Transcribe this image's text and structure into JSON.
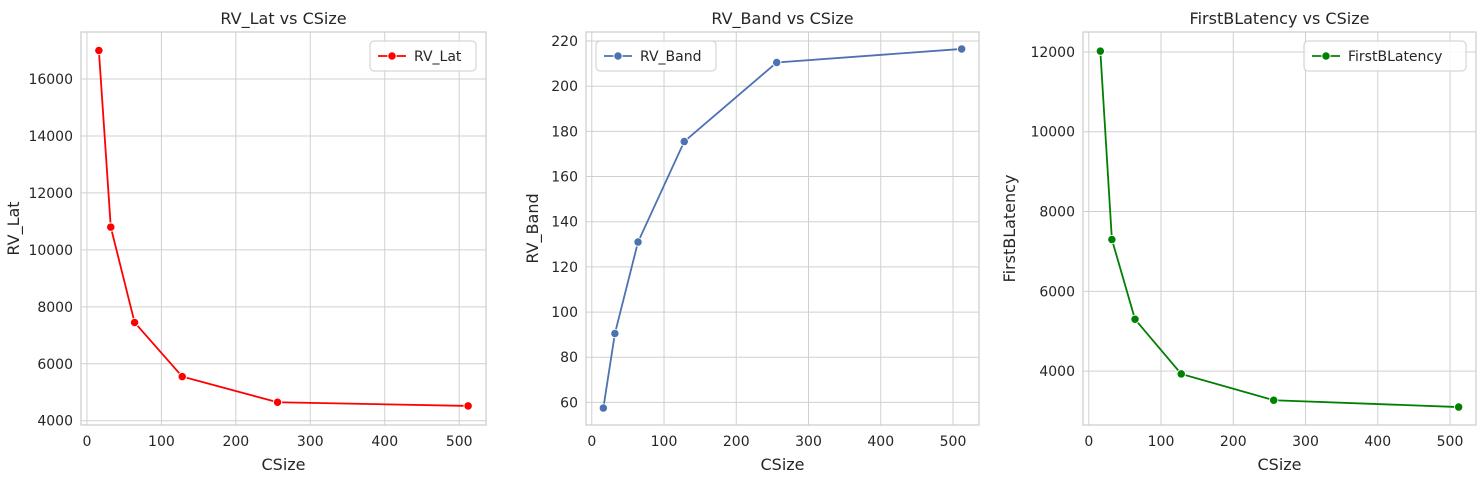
{
  "chart_data": [
    {
      "type": "line",
      "title": "RV_Lat vs CSize",
      "xlabel": "CSize",
      "ylabel": "RV_Lat",
      "xlim": [
        -8,
        536
      ],
      "ylim": [
        3850,
        17650
      ],
      "xticks": [
        0,
        100,
        200,
        300,
        400,
        500
      ],
      "yticks": [
        4000,
        6000,
        8000,
        10000,
        12000,
        14000,
        16000
      ],
      "grid": true,
      "legend_position": "top-right",
      "series": [
        {
          "name": "RV_Lat",
          "color": "#ff0000",
          "x": [
            16,
            32,
            64,
            128,
            256,
            512
          ],
          "y": [
            17000,
            10800,
            7450,
            5550,
            4650,
            4520
          ]
        }
      ]
    },
    {
      "type": "line",
      "title": "RV_Band vs CSize",
      "xlabel": "CSize",
      "ylabel": "RV_Band",
      "xlim": [
        -8,
        536
      ],
      "ylim": [
        50,
        224
      ],
      "xticks": [
        0,
        100,
        200,
        300,
        400,
        500
      ],
      "yticks": [
        60,
        80,
        100,
        120,
        140,
        160,
        180,
        200,
        220
      ],
      "grid": true,
      "legend_position": "top-left",
      "series": [
        {
          "name": "RV_Band",
          "color": "#4c72b0",
          "x": [
            16,
            32,
            64,
            128,
            256,
            512
          ],
          "y": [
            57.5,
            90.5,
            131,
            175.5,
            210.5,
            216.5
          ]
        }
      ]
    },
    {
      "type": "line",
      "title": "FirstBLatency vs CSize",
      "xlabel": "CSize",
      "ylabel": "FirstBLatency",
      "xlim": [
        -8,
        536
      ],
      "ylim": [
        2650,
        12500
      ],
      "xticks": [
        0,
        100,
        200,
        300,
        400,
        500
      ],
      "yticks": [
        4000,
        6000,
        8000,
        10000,
        12000
      ],
      "grid": true,
      "legend_position": "top-right",
      "series": [
        {
          "name": "FirstBLatency",
          "color": "#008000",
          "x": [
            16,
            32,
            64,
            128,
            256,
            512
          ],
          "y": [
            12020,
            7300,
            5300,
            3930,
            3270,
            3100
          ]
        }
      ]
    }
  ]
}
